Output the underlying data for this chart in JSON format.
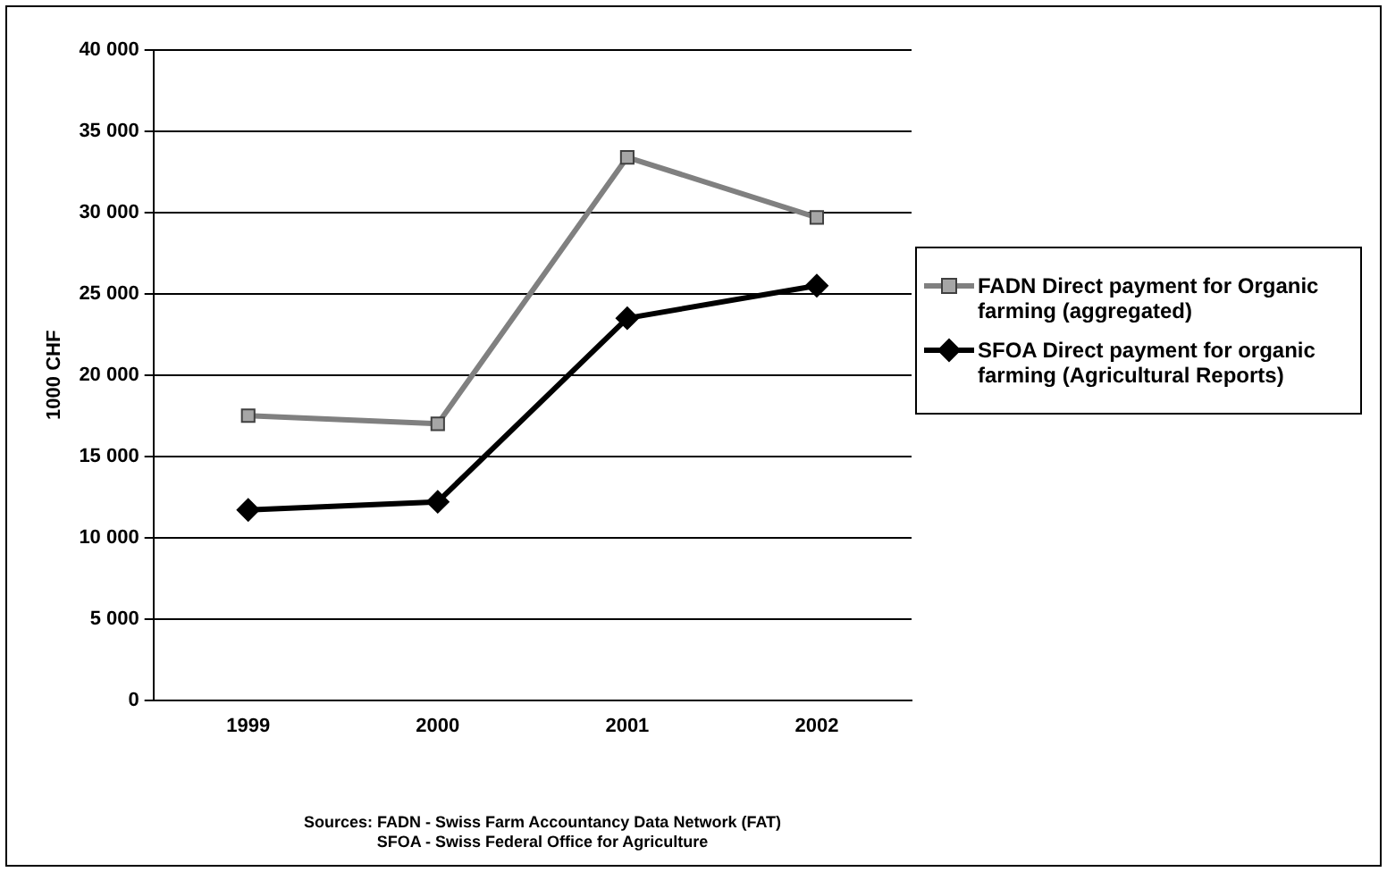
{
  "chart_data": {
    "type": "line",
    "ylabel": "1000 CHF",
    "categories": [
      "1999",
      "2000",
      "2001",
      "2002"
    ],
    "series": [
      {
        "name": "FADN Direct payment for Organic farming (aggregated)",
        "color": "#808080",
        "marker": "square",
        "values": [
          17500,
          17000,
          33400,
          29700
        ]
      },
      {
        "name": "SFOA Direct payment for organic farming (Agricultural Reports)",
        "color": "#000000",
        "marker": "diamond",
        "values": [
          11700,
          12200,
          23500,
          25500
        ]
      }
    ],
    "ylim": [
      0,
      40000
    ],
    "yticks": [
      {
        "value": 0,
        "label": "0"
      },
      {
        "value": 5000,
        "label": "5 000"
      },
      {
        "value": 10000,
        "label": "10 000"
      },
      {
        "value": 15000,
        "label": "15 000"
      },
      {
        "value": 20000,
        "label": "20 000"
      },
      {
        "value": 25000,
        "label": "25 000"
      },
      {
        "value": 30000,
        "label": "30 000"
      },
      {
        "value": 35000,
        "label": "35 000"
      },
      {
        "value": 40000,
        "label": "40 000"
      }
    ],
    "grid": "y",
    "legend": "right",
    "line_style": "solid",
    "annotations": [
      "Sources: FADN - Swiss Farm Accountancy Data Network (FAT)",
      "SFOA - Swiss Federal Office for Agriculture"
    ]
  }
}
